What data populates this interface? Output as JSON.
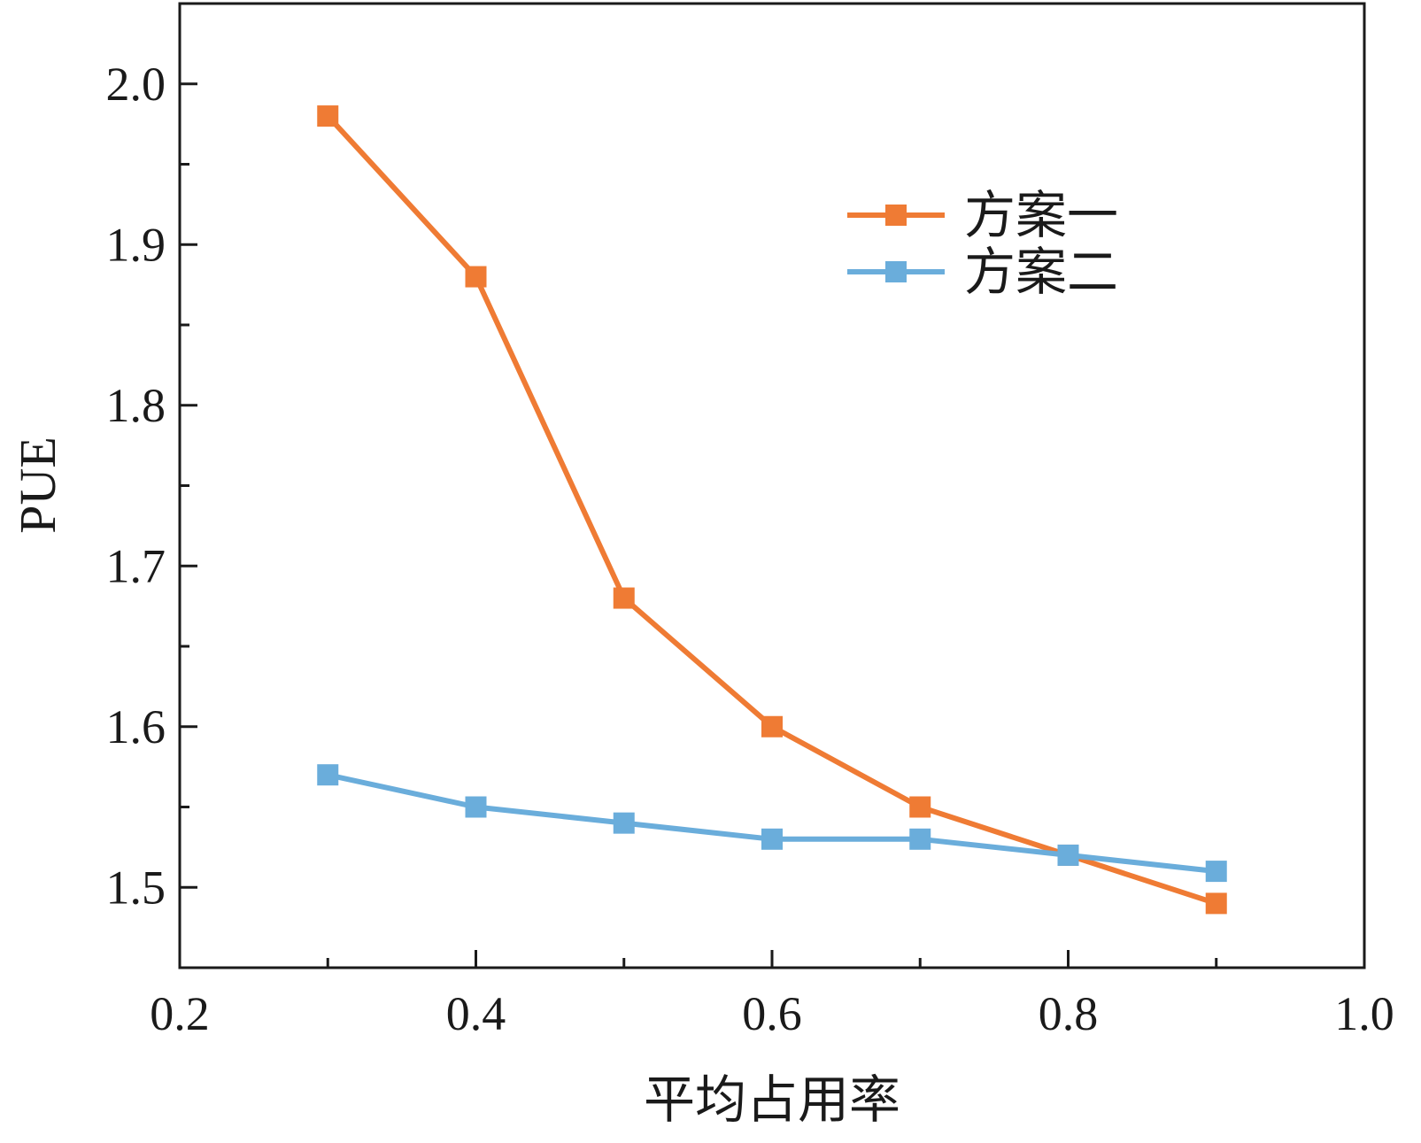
{
  "chart_data": {
    "type": "line",
    "xlabel": "平均占用率",
    "ylabel": "PUE",
    "xlim": [
      0.2,
      1.0
    ],
    "ylim": [
      1.45,
      2.05
    ],
    "x_ticks": [
      0.2,
      0.4,
      0.6,
      0.8,
      1.0
    ],
    "x_tick_labels": [
      "0.2",
      "0.4",
      "0.6",
      "0.8",
      "1.0"
    ],
    "y_ticks": [
      1.5,
      1.6,
      1.7,
      1.8,
      1.9,
      2.0
    ],
    "y_tick_labels": [
      "1.5",
      "1.6",
      "1.7",
      "1.8",
      "1.9",
      "2.0"
    ],
    "grid": false,
    "legend_position": "top-right",
    "x": [
      0.3,
      0.4,
      0.5,
      0.6,
      0.7,
      0.8,
      0.9
    ],
    "series": [
      {
        "name": "方案一",
        "color": "#ef7b34",
        "marker": "square",
        "values": [
          1.98,
          1.88,
          1.68,
          1.6,
          1.55,
          1.52,
          1.49
        ]
      },
      {
        "name": "方案二",
        "color": "#6aaddb",
        "marker": "square",
        "values": [
          1.57,
          1.55,
          1.54,
          1.53,
          1.53,
          1.52,
          1.51
        ]
      }
    ]
  }
}
